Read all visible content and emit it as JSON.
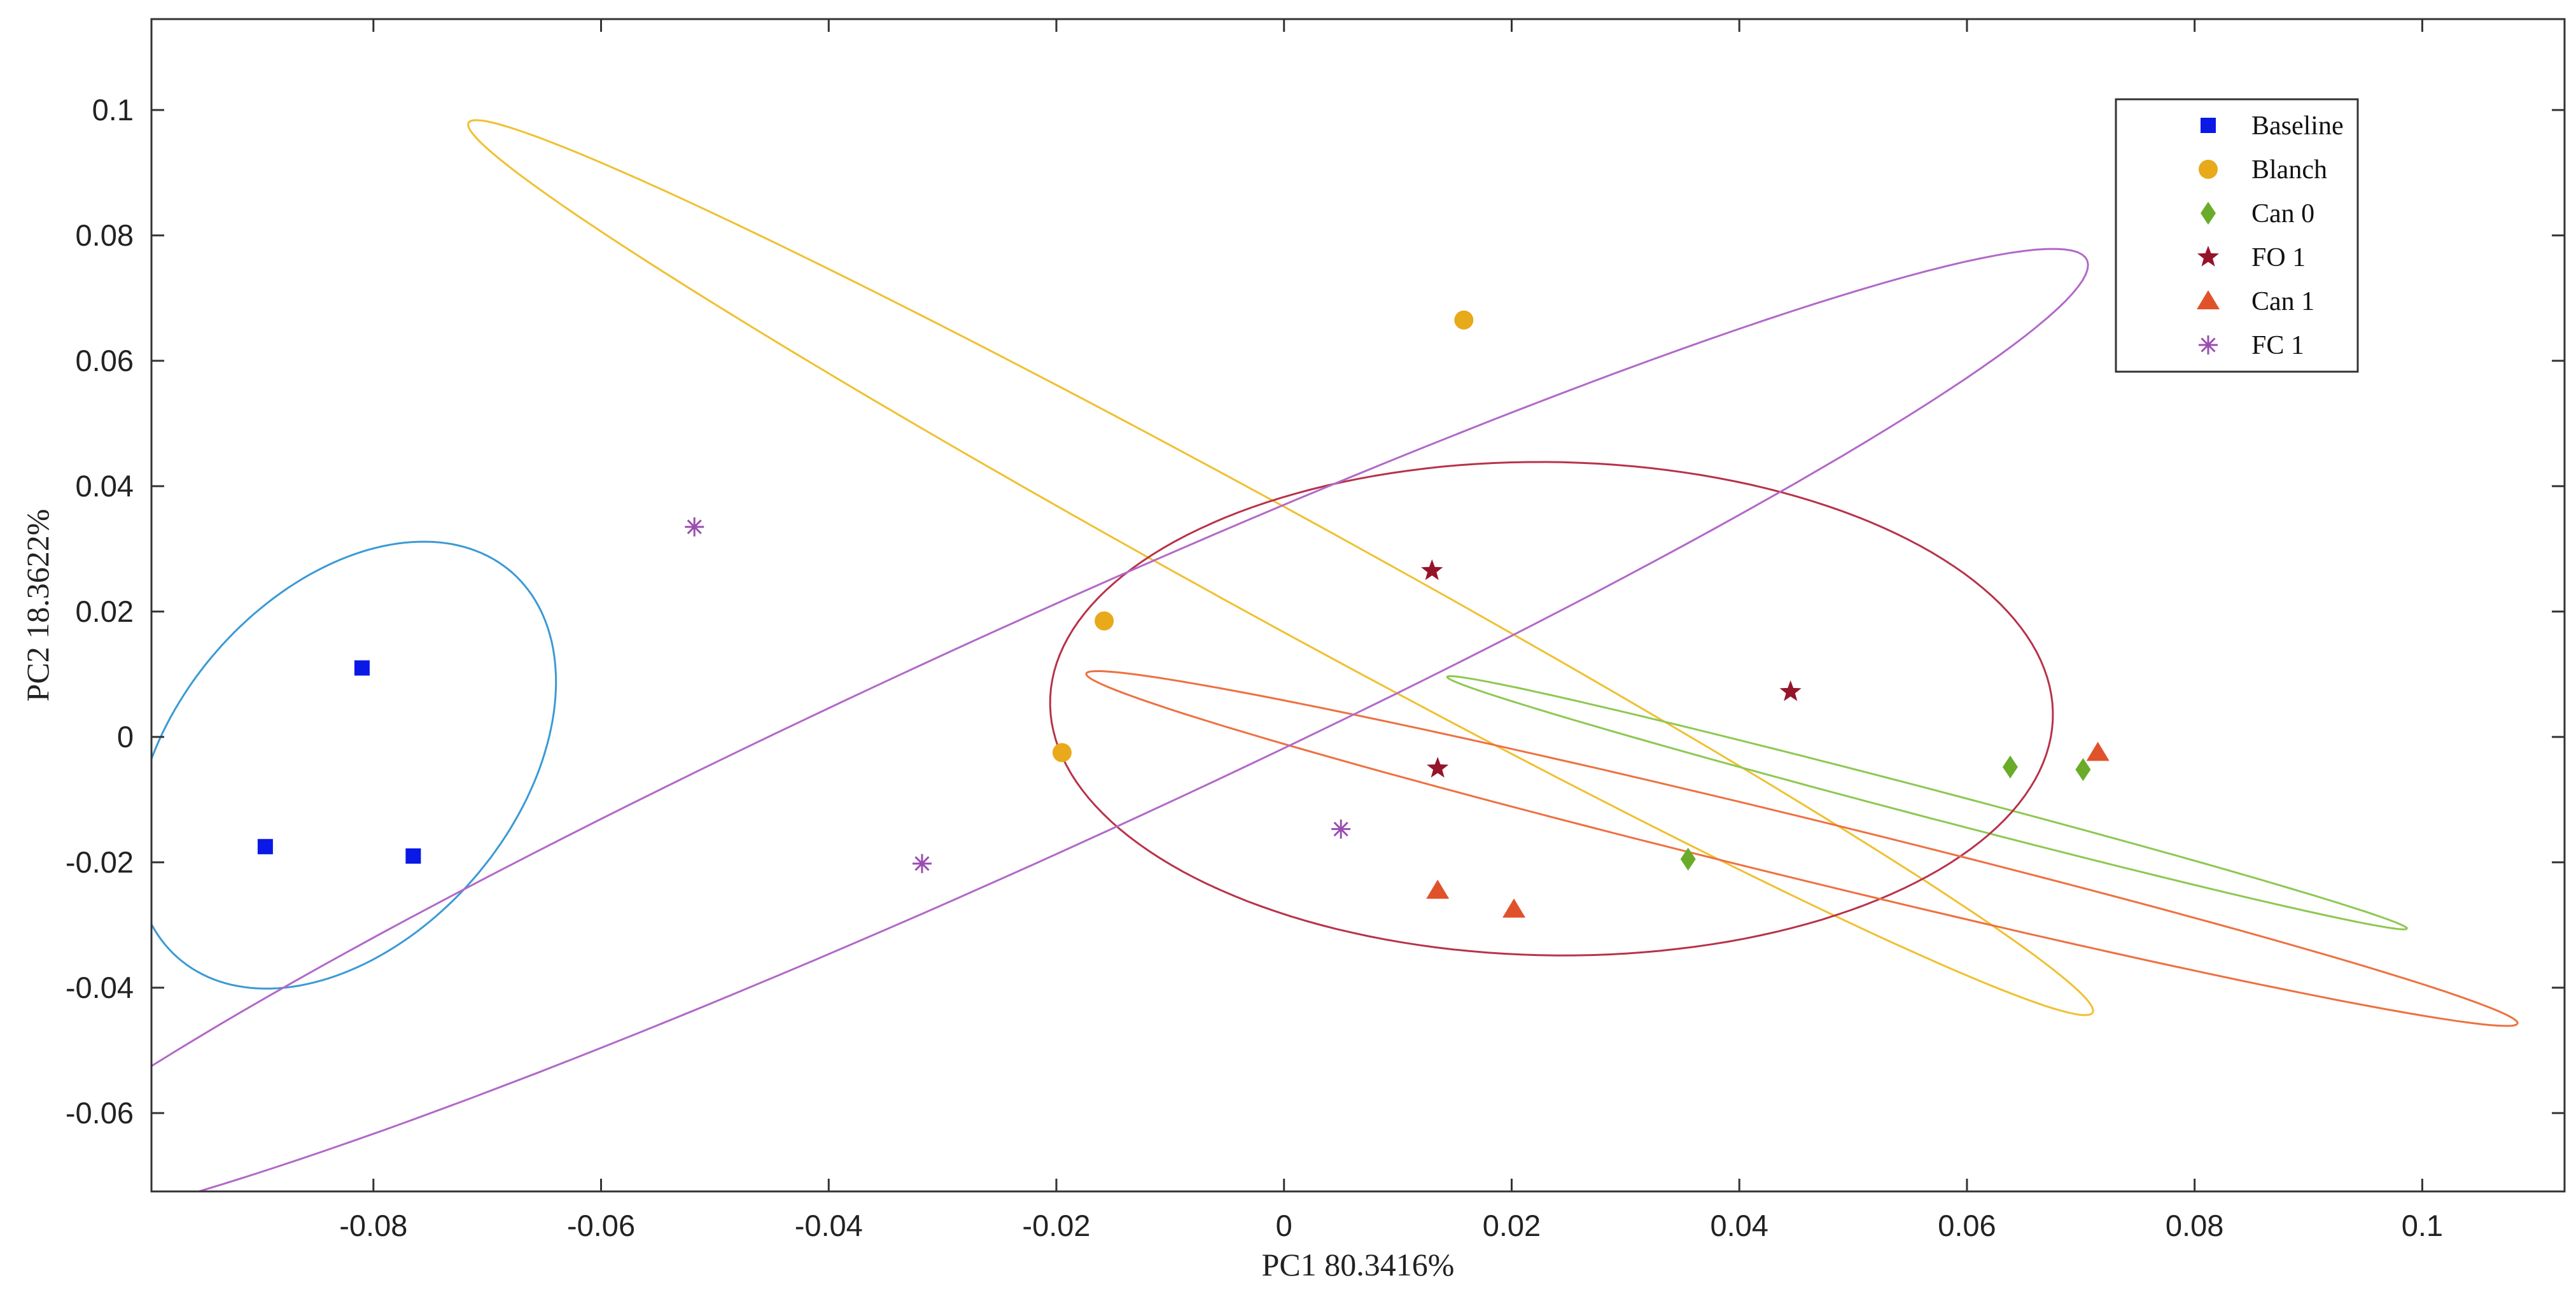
{
  "chart_data": {
    "type": "scatter",
    "title": "",
    "xlabel": "PC1 80.3416%",
    "ylabel": "PC2 18.3622%",
    "xlim": [
      -0.0995,
      0.1125
    ],
    "ylim": [
      -0.0725,
      0.1145
    ],
    "x_ticks": [
      -0.08,
      -0.06,
      -0.04,
      -0.02,
      0,
      0.02,
      0.04,
      0.06,
      0.08,
      0.1
    ],
    "x_tick_labels": [
      "-0.08",
      "-0.06",
      "-0.04",
      "-0.02",
      "0",
      "0.02",
      "0.04",
      "0.06",
      "0.08",
      "0.1"
    ],
    "y_ticks": [
      -0.06,
      -0.04,
      -0.02,
      0,
      0.02,
      0.04,
      0.06,
      0.08,
      0.1
    ],
    "y_tick_labels": [
      "-0.06",
      "-0.04",
      "-0.02",
      "0",
      "0.02",
      "0.04",
      "0.06",
      "0.08",
      "0.1"
    ],
    "grid": false,
    "legend_position": "top-right",
    "series": [
      {
        "name": "Baseline",
        "marker": "square",
        "color": "#0a19e6",
        "ellipse_color": "#3a9ad6",
        "points": [
          [
            -0.081,
            0.011
          ],
          [
            -0.0895,
            -0.0175
          ],
          [
            -0.0765,
            -0.019
          ]
        ],
        "ellipse": {
          "center": [
            -0.0825,
            -0.0045
          ],
          "rx": 0.0168,
          "ry": 0.0365,
          "angle_deg": -14
        }
      },
      {
        "name": "Blanch",
        "marker": "circle",
        "color": "#e8a91a",
        "ellipse_color": "#f0c030",
        "points": [
          [
            0.0158,
            0.0665
          ],
          [
            -0.0158,
            0.0185
          ],
          [
            -0.0195,
            -0.0025
          ]
        ],
        "ellipse": {
          "center": [
            -0.0003,
            0.027
          ],
          "rx": 0.0071,
          "ry": 0.1007,
          "angle_deg": 45
        }
      },
      {
        "name": "Can 0",
        "marker": "diamond",
        "color": "#6aac2a",
        "ellipse_color": "#8cc850",
        "points": [
          [
            0.0355,
            -0.0195
          ],
          [
            0.0638,
            -0.0048
          ],
          [
            0.0702,
            -0.0052
          ]
        ],
        "ellipse": {
          "center": [
            0.0565,
            -0.0105
          ],
          "rx": 0.0467,
          "ry": 0.0021,
          "angle_deg": -25.5
        }
      },
      {
        "name": "FO 1",
        "marker": "star",
        "color": "#96142a",
        "ellipse_color": "#b8324a",
        "points": [
          [
            0.013,
            0.0265
          ],
          [
            0.0445,
            0.0072
          ],
          [
            0.0135,
            -0.005
          ]
        ],
        "ellipse": {
          "center": [
            0.0235,
            0.0045
          ],
          "rx": 0.0441,
          "ry": 0.0393,
          "angle_deg": -6
        }
      },
      {
        "name": "Can 1",
        "marker": "triangle",
        "color": "#e0522a",
        "ellipse_color": "#ee7040",
        "points": [
          [
            0.0135,
            -0.0245
          ],
          [
            0.0202,
            -0.0275
          ],
          [
            0.0715,
            -0.0025
          ]
        ],
        "ellipse": {
          "center": [
            0.0455,
            -0.0178
          ],
          "rx": 0.0688,
          "ry": 0.0046,
          "angle_deg": -24
        }
      },
      {
        "name": "FC 1",
        "marker": "asterisk",
        "color": "#9a4cb0",
        "ellipse_color": "#b268c8",
        "points": [
          [
            -0.0518,
            0.0335
          ],
          [
            -0.0318,
            -0.0202
          ],
          [
            0.005,
            -0.0147
          ]
        ],
        "ellipse": {
          "center": [
            -0.0222,
            -0.0005
          ],
          "rx": 0.1205,
          "ry": 0.0154,
          "angle_deg": 40
        }
      }
    ]
  }
}
